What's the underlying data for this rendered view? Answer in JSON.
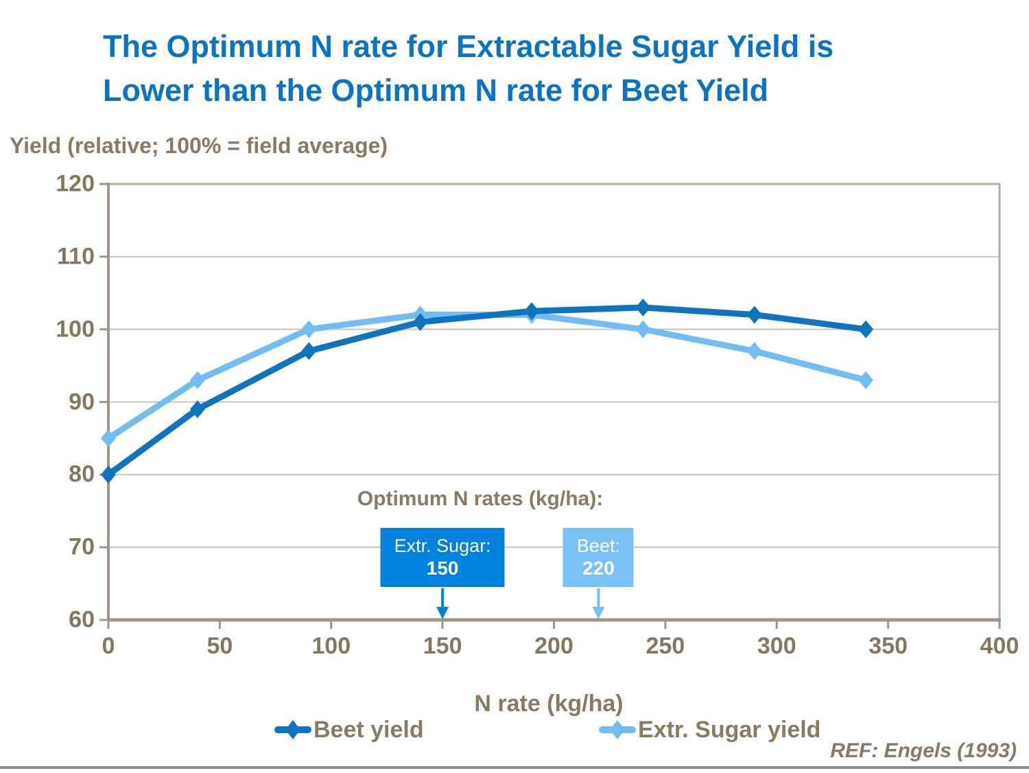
{
  "slide": {
    "title_lines": [
      "The Optimum N rate for Extractable Sugar Yield is",
      "Lower than the Optimum N rate for Beet Yield"
    ],
    "ref": "REF: Engels (1993)"
  },
  "chart_data": {
    "type": "line",
    "title": "",
    "y_axis_title": "Yield (relative; 100% = field average)",
    "x_axis_title": "N rate (kg/ha)",
    "x": [
      0,
      40,
      90,
      140,
      190,
      240,
      290,
      340
    ],
    "series": [
      {
        "name": "Beet yield",
        "color": "#1173be",
        "values": [
          80,
          89,
          97,
          101,
          102.5,
          103,
          102,
          100
        ]
      },
      {
        "name": "Extr. Sugar yield",
        "color": "#72bcf2",
        "values": [
          85,
          93,
          100,
          102,
          102,
          100,
          97,
          93
        ]
      }
    ],
    "xlim": [
      0,
      400
    ],
    "ylim": [
      60,
      120
    ],
    "x_ticks": [
      0,
      50,
      100,
      150,
      200,
      250,
      300,
      350,
      400
    ],
    "y_ticks": [
      60,
      70,
      80,
      90,
      100,
      110,
      120
    ],
    "grid": "horizontal",
    "legend_position": "bottom",
    "annotations": {
      "heading": "Optimum N rates (kg/ha):",
      "items": [
        {
          "label": "Extr. Sugar:",
          "value": "150",
          "x": 150,
          "color": "#0081dd"
        },
        {
          "label": "Beet:",
          "value": "220",
          "x": 220,
          "color": "#79c0f4"
        }
      ]
    }
  },
  "colors": {
    "title": "#0c73c2",
    "text": "#8a7963",
    "grid": "#ccc3b8",
    "axis": "#a1948a",
    "plot_border": "#b5aa9f",
    "bottom_rule": "#8b8b8b"
  }
}
